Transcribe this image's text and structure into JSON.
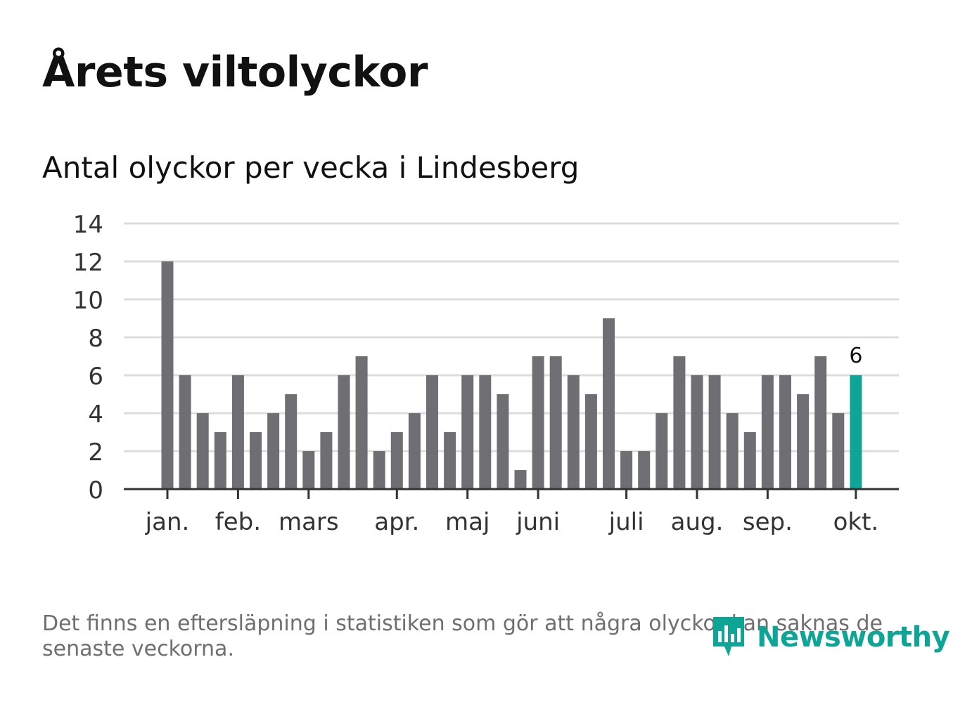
{
  "title": "Årets viltolyckor",
  "subtitle": "Antal olyckor per vecka i Lindesberg",
  "footnote": "Det finns en eftersläpning i statistiken som gör att några olyckor kan saknas de senaste veckorna.",
  "logo": {
    "text": "Newsworthy",
    "icon": "newsworthy-logo-icon"
  },
  "colors": {
    "bar": "#6f6e73",
    "highlight": "#0fa596",
    "grid": "#dddddd",
    "axis": "#333333"
  },
  "chart_data": {
    "type": "bar",
    "title": "Antal olyckor per vecka i Lindesberg",
    "xlabel": "",
    "ylabel": "",
    "ylim": [
      0,
      14
    ],
    "yticks": [
      "0",
      "2",
      "4",
      "6",
      "8",
      "10",
      "12",
      "14"
    ],
    "month_ticks": [
      {
        "label": "jan.",
        "week_index": 0
      },
      {
        "label": "feb.",
        "week_index": 4
      },
      {
        "label": "mars",
        "week_index": 8
      },
      {
        "label": "apr.",
        "week_index": 13
      },
      {
        "label": "maj",
        "week_index": 17
      },
      {
        "label": "juni",
        "week_index": 21
      },
      {
        "label": "juli",
        "week_index": 26
      },
      {
        "label": "aug.",
        "week_index": 30
      },
      {
        "label": "sep.",
        "week_index": 34
      },
      {
        "label": "okt.",
        "week_index": 39
      }
    ],
    "values": [
      12,
      6,
      4,
      3,
      6,
      3,
      4,
      5,
      2,
      3,
      6,
      7,
      2,
      3,
      4,
      6,
      3,
      6,
      6,
      5,
      1,
      7,
      7,
      6,
      5,
      9,
      2,
      2,
      4,
      7,
      6,
      6,
      4,
      3,
      6,
      6,
      5,
      7,
      4,
      6
    ],
    "highlight_index": 39,
    "highlight_label": "6",
    "grid": true
  }
}
